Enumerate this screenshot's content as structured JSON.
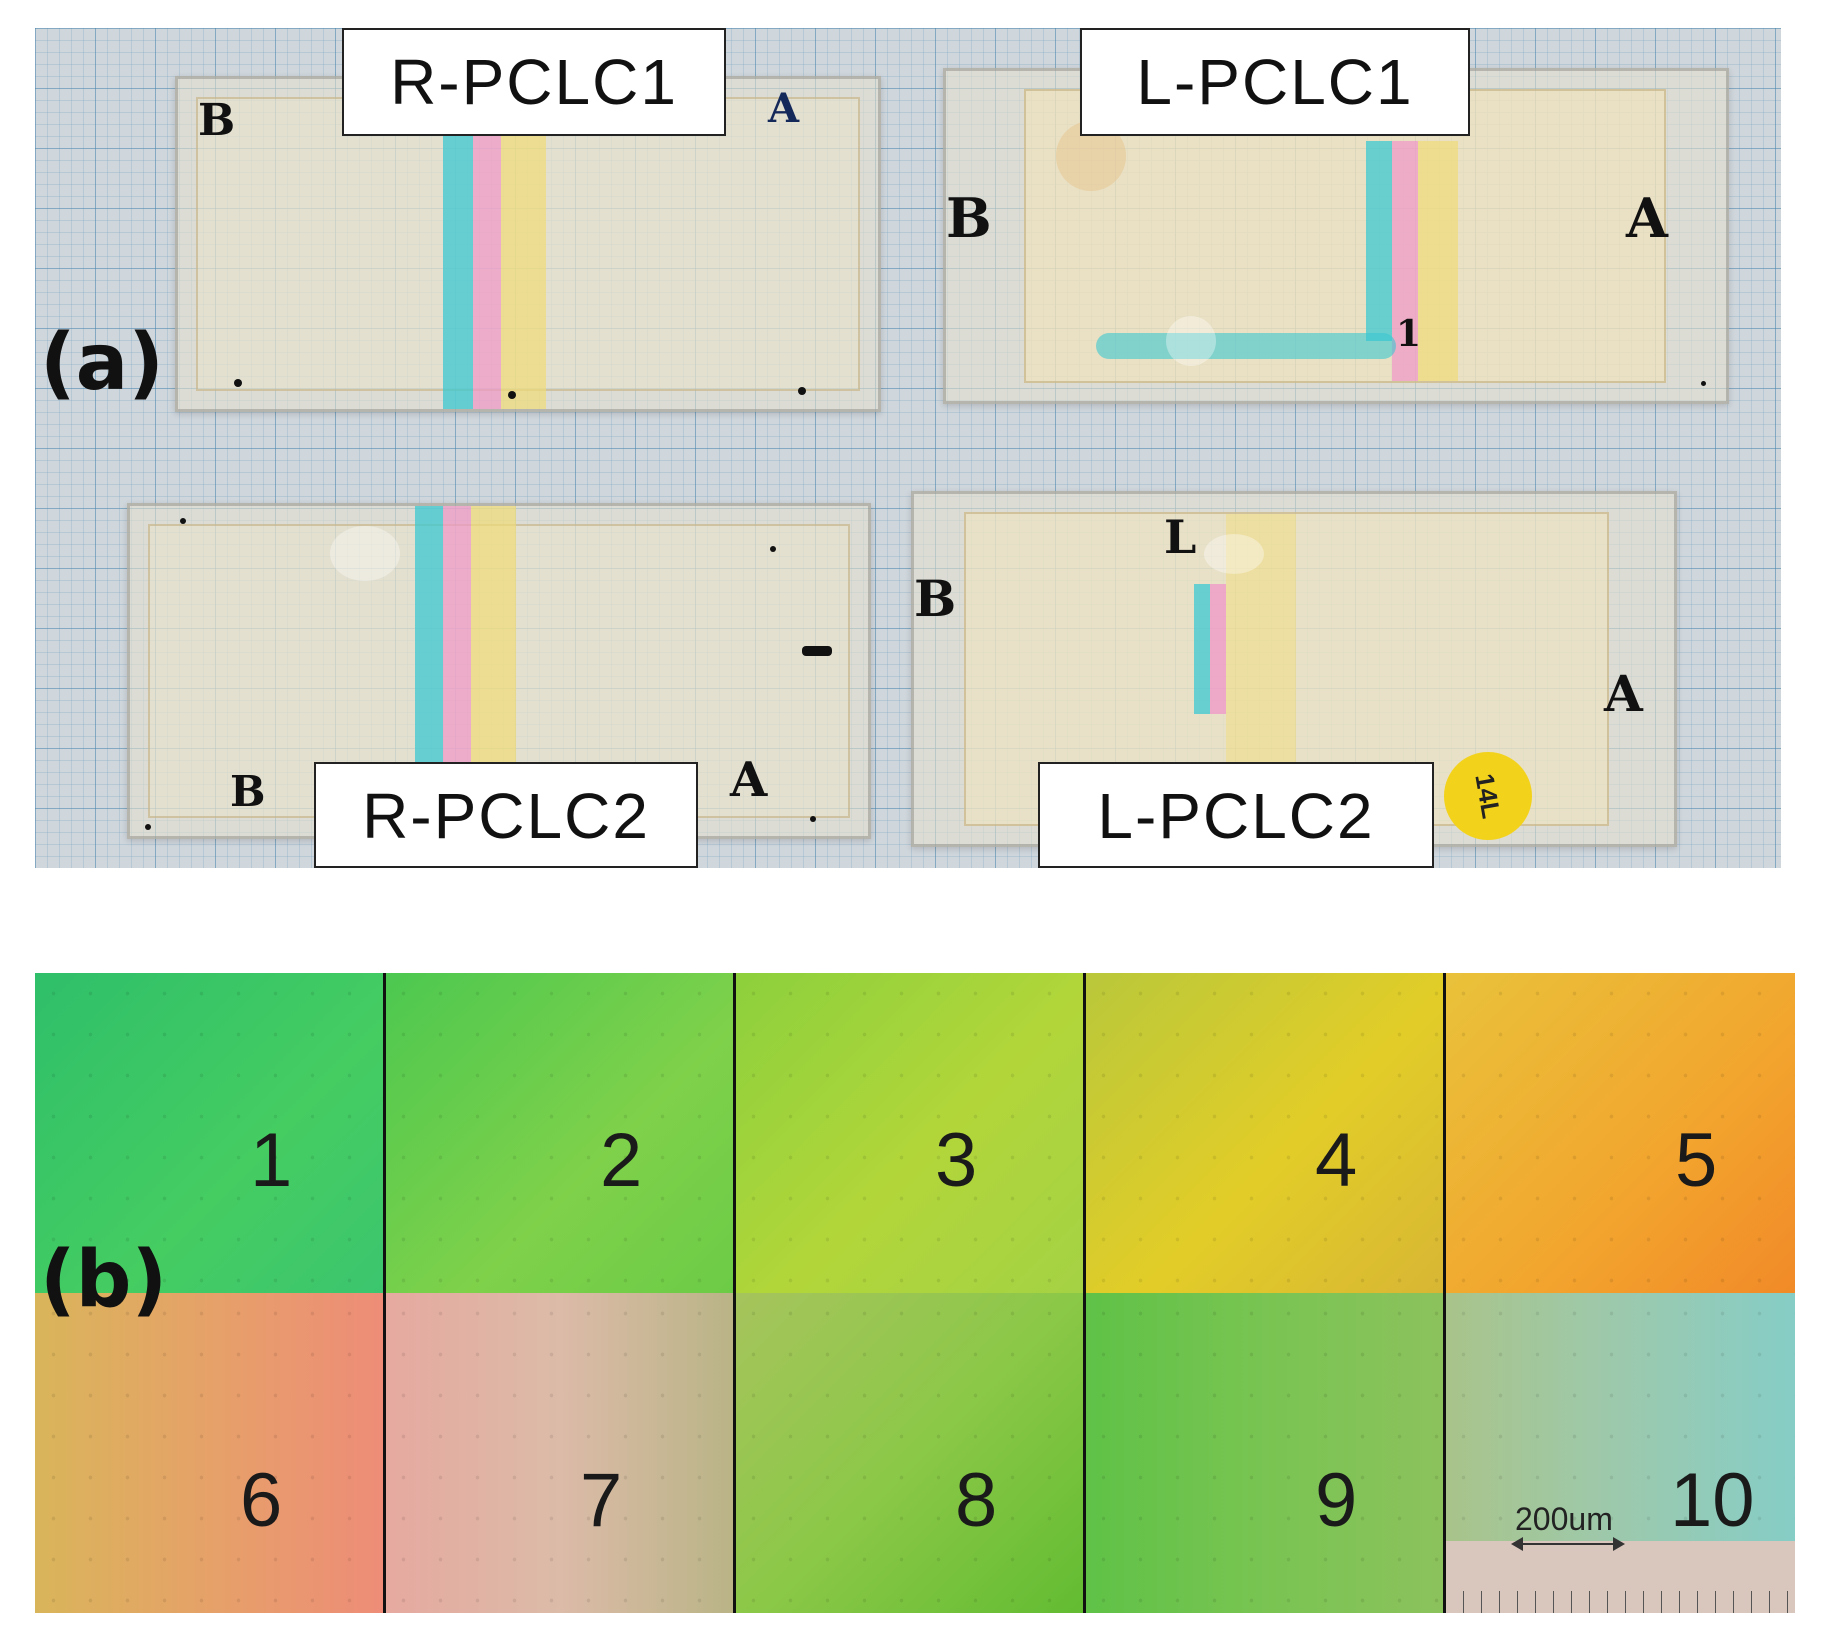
{
  "panel_a": {
    "letter": "(a)",
    "samples": [
      {
        "label": "R-PCLC1"
      },
      {
        "label": "L-PCLC1"
      },
      {
        "label": "R-PCLC2"
      },
      {
        "label": "L-PCLC2"
      }
    ],
    "slide_marks": {
      "r1_corner": "B",
      "r1_corner2": "A",
      "l1_left": "B",
      "l1_right": "A",
      "l1_bottom": "1",
      "r2_corner": "B",
      "r2_corner2": "A",
      "l2_left": "B",
      "l2_top": "L",
      "l2_right": "A"
    },
    "sticker_text": "14L"
  },
  "panel_b": {
    "letter": "(b)",
    "tiles": [
      {
        "number": "1",
        "color": "#3ec866"
      },
      {
        "number": "2",
        "color": "#6cce4a"
      },
      {
        "number": "3",
        "color": "#a8d23c"
      },
      {
        "number": "4",
        "color": "#d9c92c"
      },
      {
        "number": "5",
        "color": "#f1a932"
      },
      {
        "number": "6",
        "color": "#e59a6c"
      },
      {
        "number": "7",
        "color": "#d8b7a5"
      },
      {
        "number": "8",
        "color": "#82c744"
      },
      {
        "number": "9",
        "color": "#6cc052"
      },
      {
        "number": "10",
        "color": "#8fcbb9"
      }
    ],
    "scale_bar": "200um"
  }
}
